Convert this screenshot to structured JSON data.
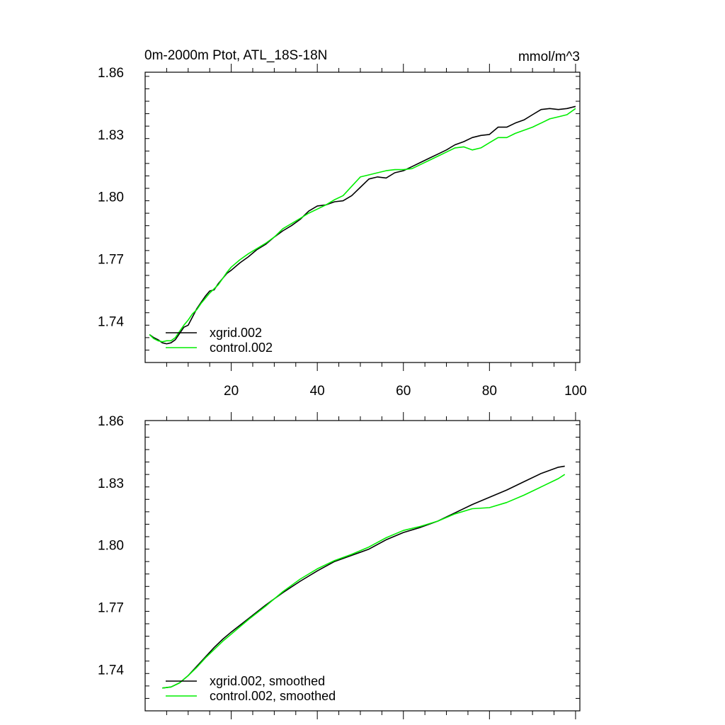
{
  "colors": {
    "xgrid": "#000000",
    "control": "#00ee00"
  },
  "chart_data": [
    {
      "type": "line",
      "title": "0m-2000m Ptot, ATL_18S-18N",
      "units": "mmol/m^3",
      "xlabel": "",
      "ylabel": "",
      "xlim": [
        0,
        101
      ],
      "ylim": [
        1.72,
        1.86
      ],
      "xticks": [
        20,
        40,
        60,
        80,
        100
      ],
      "yticks": [
        1.74,
        1.77,
        1.8,
        1.83,
        1.86
      ],
      "ytick_labels": [
        "1.74",
        "1.77",
        "1.80",
        "1.83",
        "1.86"
      ],
      "xtick_labels": [
        "20",
        "40",
        "60",
        "80",
        "100"
      ],
      "legend_position": "bottom-left",
      "series": [
        {
          "name": "xgrid.002",
          "color_key": "xgrid",
          "x": [
            1,
            2,
            3,
            4,
            5,
            6,
            7,
            8,
            9,
            10,
            11,
            12,
            13,
            14,
            15,
            16,
            17,
            18,
            19,
            20,
            22,
            24,
            26,
            28,
            30,
            32,
            34,
            36,
            38,
            40,
            42,
            44,
            46,
            48,
            50,
            52,
            54,
            56,
            58,
            60,
            62,
            64,
            66,
            68,
            70,
            72,
            74,
            76,
            78,
            80,
            82,
            84,
            86,
            88,
            90,
            92,
            94,
            96,
            98,
            100
          ],
          "values": [
            1.7335,
            1.732,
            1.731,
            1.7295,
            1.729,
            1.7295,
            1.731,
            1.734,
            1.737,
            1.738,
            1.742,
            1.746,
            1.749,
            1.752,
            1.7545,
            1.755,
            1.758,
            1.7605,
            1.763,
            1.7645,
            1.768,
            1.771,
            1.7745,
            1.777,
            1.7805,
            1.7835,
            1.786,
            1.789,
            1.793,
            1.7955,
            1.796,
            1.7975,
            1.798,
            1.8005,
            1.8045,
            1.8085,
            1.8095,
            1.809,
            1.8115,
            1.8125,
            1.8145,
            1.8165,
            1.8185,
            1.8205,
            1.8225,
            1.825,
            1.8265,
            1.8285,
            1.8295,
            1.83,
            1.8335,
            1.8335,
            1.8355,
            1.837,
            1.8395,
            1.842,
            1.8425,
            1.842,
            1.8425,
            1.8435
          ]
        },
        {
          "name": "control.002",
          "color_key": "control",
          "x": [
            1,
            2,
            3,
            4,
            5,
            6,
            7,
            8,
            9,
            10,
            11,
            12,
            13,
            14,
            15,
            16,
            17,
            18,
            19,
            20,
            22,
            24,
            26,
            28,
            30,
            32,
            34,
            36,
            38,
            40,
            42,
            44,
            46,
            48,
            50,
            52,
            54,
            56,
            58,
            60,
            62,
            64,
            66,
            68,
            70,
            72,
            74,
            76,
            78,
            80,
            82,
            84,
            86,
            88,
            90,
            92,
            94,
            96,
            98,
            100
          ],
          "values": [
            1.7335,
            1.7315,
            1.7305,
            1.73,
            1.7305,
            1.7305,
            1.732,
            1.735,
            1.738,
            1.7405,
            1.7435,
            1.7455,
            1.7485,
            1.751,
            1.7535,
            1.7555,
            1.7575,
            1.7605,
            1.7635,
            1.766,
            1.7695,
            1.7725,
            1.775,
            1.7775,
            1.7805,
            1.7845,
            1.787,
            1.7895,
            1.792,
            1.794,
            1.796,
            1.7985,
            1.8005,
            1.805,
            1.8095,
            1.8105,
            1.8115,
            1.8125,
            1.813,
            1.813,
            1.8135,
            1.8155,
            1.8175,
            1.8195,
            1.8215,
            1.8235,
            1.824,
            1.8225,
            1.8235,
            1.826,
            1.8285,
            1.8285,
            1.8305,
            1.832,
            1.8335,
            1.8355,
            1.8375,
            1.8385,
            1.8395,
            1.8425
          ]
        }
      ]
    },
    {
      "type": "line",
      "title": "",
      "xlabel": "",
      "ylabel": "",
      "xlim": [
        0,
        101
      ],
      "ylim": [
        1.72,
        1.86
      ],
      "xticks": [
        20,
        40,
        60,
        80,
        100
      ],
      "yticks": [
        1.74,
        1.77,
        1.8,
        1.83,
        1.86
      ],
      "ytick_labels": [
        "1.74",
        "1.77",
        "1.80",
        "1.83",
        "1.86"
      ],
      "xtick_labels": [],
      "legend_position": "bottom-left",
      "series": [
        {
          "name": "xgrid.002, smoothed",
          "color_key": "xgrid",
          "x": [
            4,
            6,
            8,
            10,
            12,
            14,
            16,
            18,
            20,
            24,
            28,
            32,
            36,
            40,
            44,
            48,
            52,
            56,
            60,
            64,
            68,
            72,
            76,
            80,
            84,
            88,
            92,
            96,
            97.5
          ],
          "values": [
            1.731,
            1.7315,
            1.7335,
            1.737,
            1.7415,
            1.746,
            1.7505,
            1.7545,
            1.758,
            1.7645,
            1.771,
            1.777,
            1.7825,
            1.7875,
            1.792,
            1.795,
            1.798,
            1.8025,
            1.806,
            1.8085,
            1.8115,
            1.8155,
            1.8195,
            1.823,
            1.8265,
            1.8305,
            1.8345,
            1.8375,
            1.838
          ]
        },
        {
          "name": "control.002, smoothed",
          "color_key": "control",
          "x": [
            4,
            6,
            8,
            10,
            12,
            14,
            16,
            18,
            20,
            24,
            28,
            32,
            36,
            40,
            44,
            48,
            52,
            56,
            60,
            64,
            68,
            72,
            76,
            80,
            84,
            88,
            92,
            96,
            97.5
          ],
          "values": [
            1.731,
            1.7315,
            1.7335,
            1.737,
            1.741,
            1.7455,
            1.7495,
            1.7535,
            1.757,
            1.764,
            1.7705,
            1.7775,
            1.7835,
            1.7885,
            1.7925,
            1.7955,
            1.799,
            1.8035,
            1.807,
            1.809,
            1.8115,
            1.815,
            1.8175,
            1.818,
            1.8205,
            1.824,
            1.828,
            1.832,
            1.834
          ]
        }
      ]
    }
  ]
}
